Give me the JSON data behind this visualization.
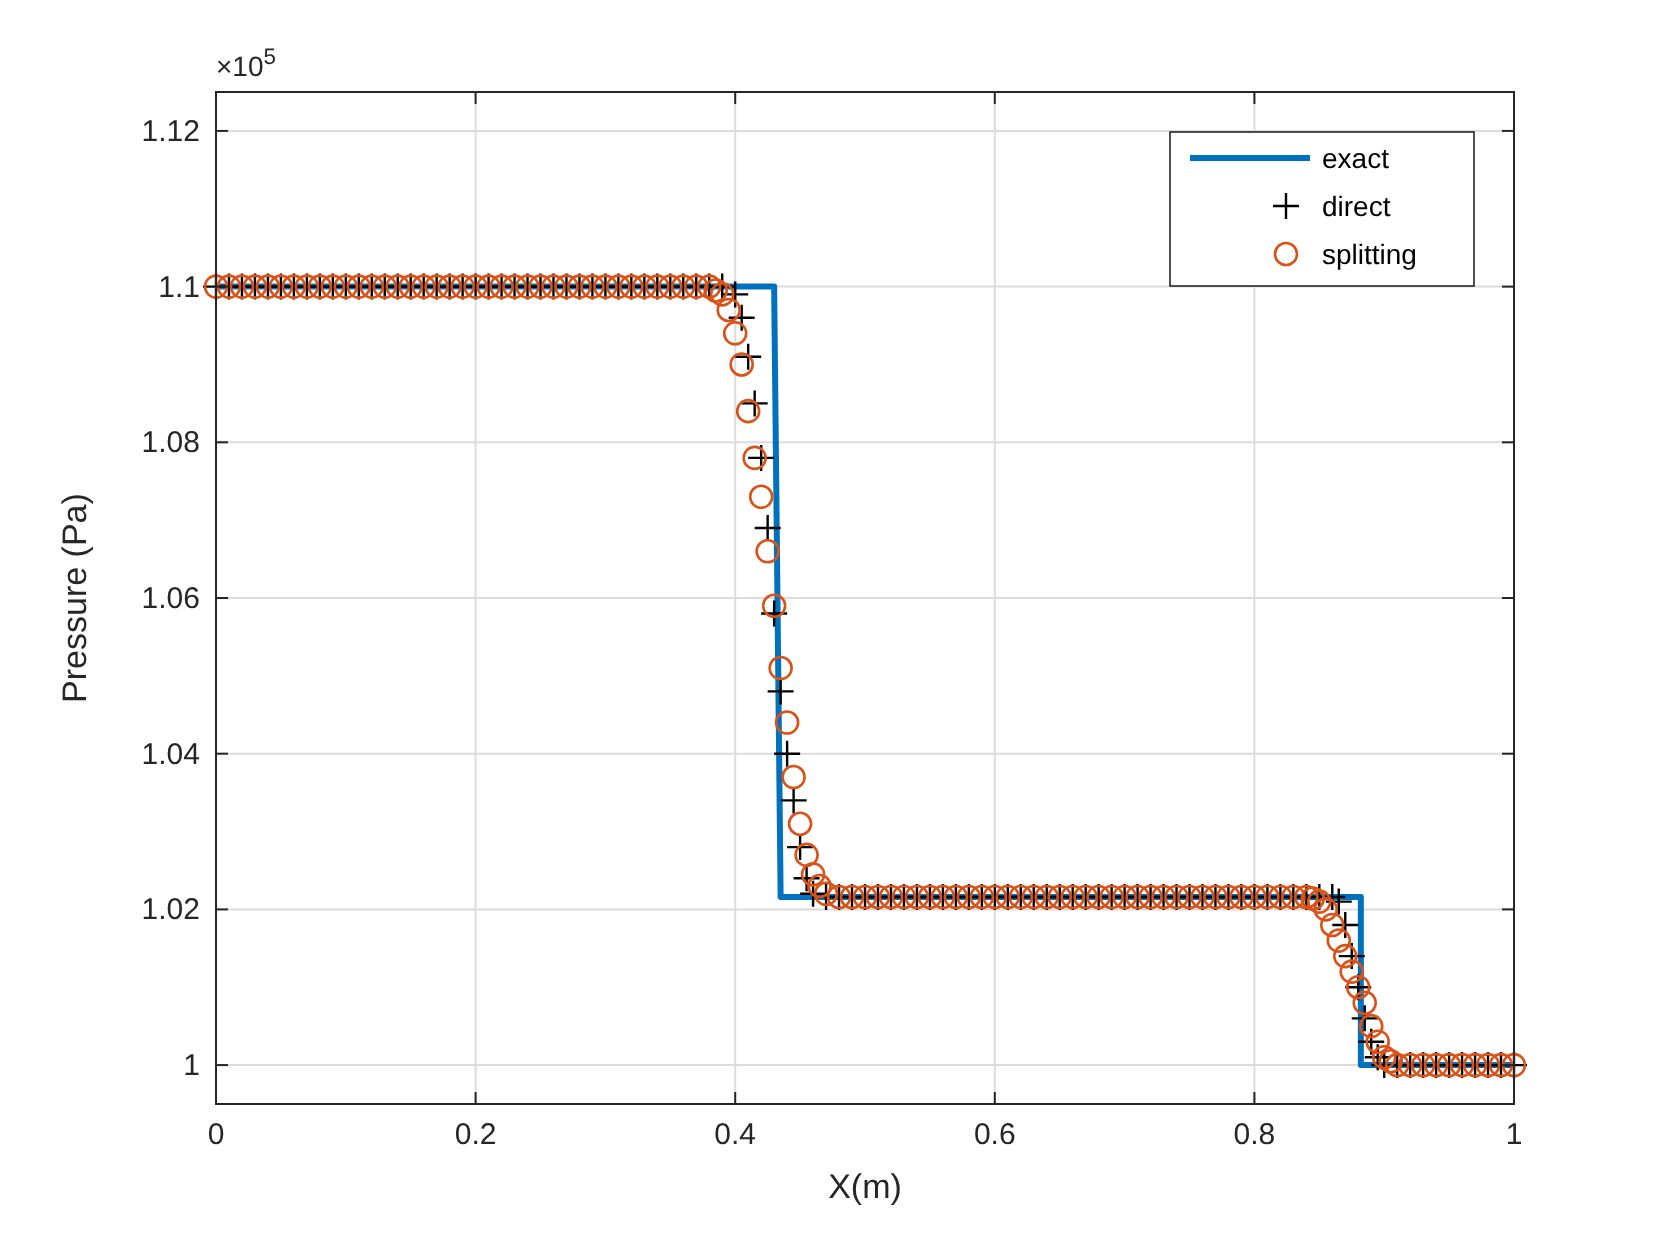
{
  "chart_data": {
    "type": "line",
    "xlabel": "X(m)",
    "ylabel": "Pressure (Pa)",
    "annotations": [
      "×10$^{5}$"
    ],
    "xlim": [
      0,
      1
    ],
    "xticks": [
      0,
      0.2,
      0.4,
      0.6,
      0.8,
      1
    ],
    "ylim": [
      0.995,
      1.125
    ],
    "yticks": [
      1,
      1.02,
      1.04,
      1.06,
      1.08,
      1.1,
      1.12
    ],
    "grid": true,
    "legend": "top right",
    "series": [
      {
        "name": "exact",
        "color": "#0072bd",
        "marker": "none",
        "line_style": "solid",
        "x": [
          0,
          0.43,
          0.435,
          0.882,
          0.882,
          1
        ],
        "values": [
          1.1,
          1.1,
          1.0216,
          1.0216,
          1.0,
          1.0
        ]
      },
      {
        "name": "direct",
        "type": "scatter",
        "color": "#000000",
        "marker": "cross",
        "x": [
          0,
          0.01,
          0.02,
          0.03,
          0.04,
          0.05,
          0.06,
          0.07,
          0.08,
          0.09,
          0.1,
          0.11,
          0.12,
          0.13,
          0.14,
          0.15,
          0.16,
          0.17,
          0.18,
          0.19,
          0.2,
          0.21,
          0.22,
          0.23,
          0.24,
          0.25,
          0.26,
          0.27,
          0.28,
          0.29,
          0.3,
          0.31,
          0.32,
          0.33,
          0.34,
          0.35,
          0.36,
          0.37,
          0.38,
          0.39,
          0.4,
          0.405,
          0.41,
          0.415,
          0.42,
          0.425,
          0.43,
          0.435,
          0.44,
          0.445,
          0.45,
          0.455,
          0.46,
          0.47,
          0.48,
          0.49,
          0.5,
          0.51,
          0.52,
          0.53,
          0.54,
          0.55,
          0.56,
          0.57,
          0.58,
          0.59,
          0.6,
          0.61,
          0.62,
          0.63,
          0.64,
          0.65,
          0.66,
          0.67,
          0.68,
          0.69,
          0.7,
          0.71,
          0.72,
          0.73,
          0.74,
          0.75,
          0.76,
          0.77,
          0.78,
          0.79,
          0.8,
          0.81,
          0.82,
          0.83,
          0.84,
          0.85,
          0.86,
          0.865,
          0.87,
          0.875,
          0.88,
          0.885,
          0.89,
          0.895,
          0.9,
          0.91,
          0.92,
          0.93,
          0.94,
          0.95,
          0.96,
          0.97,
          0.98,
          0.99,
          1
        ],
        "values": [
          1.1,
          1.1,
          1.1,
          1.1,
          1.1,
          1.1,
          1.1,
          1.1,
          1.1,
          1.1,
          1.1,
          1.1,
          1.1,
          1.1,
          1.1,
          1.1,
          1.1,
          1.1,
          1.1,
          1.1,
          1.1,
          1.1,
          1.1,
          1.1,
          1.1,
          1.1,
          1.1,
          1.1,
          1.1,
          1.1,
          1.1,
          1.1,
          1.1,
          1.1,
          1.1,
          1.1,
          1.1,
          1.1,
          1.1,
          1.1,
          1.099,
          1.096,
          1.091,
          1.085,
          1.078,
          1.069,
          1.058,
          1.048,
          1.04,
          1.034,
          1.028,
          1.024,
          1.022,
          1.0216,
          1.0216,
          1.0216,
          1.0216,
          1.0216,
          1.0216,
          1.0216,
          1.0216,
          1.0216,
          1.0216,
          1.0216,
          1.0216,
          1.0216,
          1.0216,
          1.0216,
          1.0216,
          1.0216,
          1.0216,
          1.0216,
          1.0216,
          1.0216,
          1.0216,
          1.0216,
          1.0216,
          1.0216,
          1.0216,
          1.0216,
          1.0216,
          1.0216,
          1.0216,
          1.0216,
          1.0216,
          1.0216,
          1.0216,
          1.0216,
          1.0216,
          1.0216,
          1.0216,
          1.0216,
          1.0216,
          1.021,
          1.018,
          1.014,
          1.01,
          1.006,
          1.003,
          1.001,
          1.0,
          1.0,
          1.0,
          1.0,
          1.0,
          1.0,
          1.0,
          1.0,
          1.0,
          1.0,
          1.0
        ]
      },
      {
        "name": "splitting",
        "type": "scatter",
        "color": "#d95319",
        "marker": "circle",
        "x": [
          0,
          0.01,
          0.02,
          0.03,
          0.04,
          0.05,
          0.06,
          0.07,
          0.08,
          0.09,
          0.1,
          0.11,
          0.12,
          0.13,
          0.14,
          0.15,
          0.16,
          0.17,
          0.18,
          0.19,
          0.2,
          0.21,
          0.22,
          0.23,
          0.24,
          0.25,
          0.26,
          0.27,
          0.28,
          0.29,
          0.3,
          0.31,
          0.32,
          0.33,
          0.34,
          0.35,
          0.36,
          0.37,
          0.38,
          0.385,
          0.39,
          0.395,
          0.4,
          0.405,
          0.41,
          0.415,
          0.42,
          0.425,
          0.43,
          0.435,
          0.44,
          0.445,
          0.45,
          0.455,
          0.46,
          0.465,
          0.47,
          0.48,
          0.49,
          0.5,
          0.51,
          0.52,
          0.53,
          0.54,
          0.55,
          0.56,
          0.57,
          0.58,
          0.59,
          0.6,
          0.61,
          0.62,
          0.63,
          0.64,
          0.65,
          0.66,
          0.67,
          0.68,
          0.69,
          0.7,
          0.71,
          0.72,
          0.73,
          0.74,
          0.75,
          0.76,
          0.77,
          0.78,
          0.79,
          0.8,
          0.81,
          0.82,
          0.83,
          0.84,
          0.845,
          0.85,
          0.855,
          0.86,
          0.865,
          0.87,
          0.875,
          0.88,
          0.885,
          0.89,
          0.895,
          0.9,
          0.905,
          0.91,
          0.92,
          0.93,
          0.94,
          0.95,
          0.96,
          0.97,
          0.98,
          0.99,
          1
        ],
        "values": [
          1.1,
          1.1,
          1.1,
          1.1,
          1.1,
          1.1,
          1.1,
          1.1,
          1.1,
          1.1,
          1.1,
          1.1,
          1.1,
          1.1,
          1.1,
          1.1,
          1.1,
          1.1,
          1.1,
          1.1,
          1.1,
          1.1,
          1.1,
          1.1,
          1.1,
          1.1,
          1.1,
          1.1,
          1.1,
          1.1,
          1.1,
          1.1,
          1.1,
          1.1,
          1.1,
          1.1,
          1.1,
          1.1,
          1.1,
          1.0995,
          1.099,
          1.097,
          1.094,
          1.09,
          1.084,
          1.078,
          1.073,
          1.066,
          1.059,
          1.051,
          1.044,
          1.037,
          1.031,
          1.027,
          1.0245,
          1.023,
          1.022,
          1.0216,
          1.0216,
          1.0216,
          1.0216,
          1.0216,
          1.0216,
          1.0216,
          1.0216,
          1.0216,
          1.0216,
          1.0216,
          1.0216,
          1.0216,
          1.0216,
          1.0216,
          1.0216,
          1.0216,
          1.0216,
          1.0216,
          1.0216,
          1.0216,
          1.0216,
          1.0216,
          1.0216,
          1.0216,
          1.0216,
          1.0216,
          1.0216,
          1.0216,
          1.0216,
          1.0216,
          1.0216,
          1.0216,
          1.0216,
          1.0216,
          1.0216,
          1.0216,
          1.0214,
          1.021,
          1.02,
          1.018,
          1.016,
          1.014,
          1.012,
          1.01,
          1.008,
          1.005,
          1.003,
          1.001,
          1.0005,
          1.0,
          1.0,
          1.0,
          1.0,
          1.0,
          1.0,
          1.0,
          1.0,
          1.0,
          1.0
        ]
      }
    ]
  }
}
